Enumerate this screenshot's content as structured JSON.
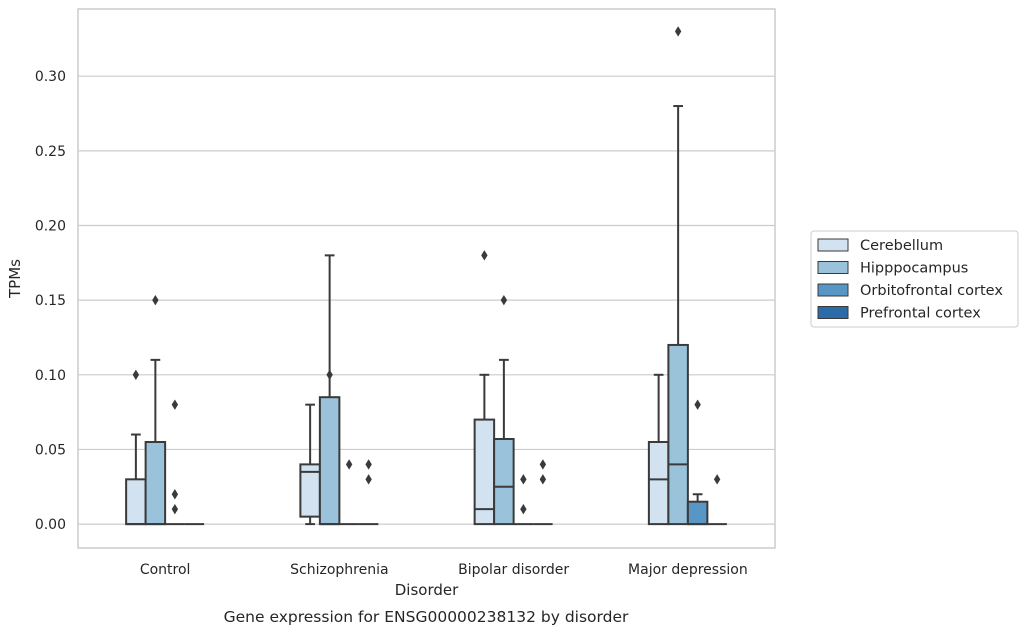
{
  "chart_data": {
    "type": "boxplot",
    "caption": "Gene expression for ENSG00000238132 by disorder",
    "xlabel": "Disorder",
    "ylabel": "TPMs",
    "ylim": [
      -0.016,
      0.345
    ],
    "yticks": [
      0.0,
      0.05,
      0.1,
      0.15,
      0.2,
      0.25,
      0.3
    ],
    "ytick_labels": [
      "0.00",
      "0.05",
      "0.10",
      "0.15",
      "0.20",
      "0.25",
      "0.30"
    ],
    "grid": true,
    "legend_position": "right",
    "categories": [
      "Control",
      "Schizophrenia",
      "Bipolar disorder",
      "Major depression"
    ],
    "series": [
      {
        "name": "Cerebellum",
        "color": "#d2e2f0",
        "boxes": [
          {
            "q1": 0.0,
            "median": 0.0,
            "q3": 0.03,
            "whisker_low": 0.0,
            "whisker_high": 0.06,
            "outliers": [
              0.1
            ]
          },
          {
            "q1": 0.005,
            "median": 0.035,
            "q3": 0.04,
            "whisker_low": 0.0,
            "whisker_high": 0.08,
            "outliers": []
          },
          {
            "q1": 0.0,
            "median": 0.01,
            "q3": 0.07,
            "whisker_low": 0.0,
            "whisker_high": 0.1,
            "outliers": [
              0.18
            ]
          },
          {
            "q1": 0.0,
            "median": 0.03,
            "q3": 0.055,
            "whisker_low": 0.0,
            "whisker_high": 0.1,
            "outliers": []
          }
        ]
      },
      {
        "name": "Hipppocampus",
        "color": "#9ac3db",
        "boxes": [
          {
            "q1": 0.0,
            "median": 0.0,
            "q3": 0.055,
            "whisker_low": 0.0,
            "whisker_high": 0.11,
            "outliers": [
              0.15
            ]
          },
          {
            "q1": 0.0,
            "median": 0.0,
            "q3": 0.085,
            "whisker_low": 0.0,
            "whisker_high": 0.18,
            "outliers": [
              0.1
            ]
          },
          {
            "q1": 0.0,
            "median": 0.025,
            "q3": 0.057,
            "whisker_low": 0.0,
            "whisker_high": 0.11,
            "outliers": [
              0.15
            ]
          },
          {
            "q1": 0.0,
            "median": 0.04,
            "q3": 0.12,
            "whisker_low": 0.0,
            "whisker_high": 0.28,
            "outliers": [
              0.33
            ]
          }
        ]
      },
      {
        "name": "Orbitofrontal cortex",
        "color": "#5897c5",
        "boxes": [
          {
            "q1": 0.0,
            "median": 0.0,
            "q3": 0.0,
            "whisker_low": 0.0,
            "whisker_high": 0.0,
            "outliers": [
              0.01,
              0.02,
              0.08
            ]
          },
          {
            "q1": 0.0,
            "median": 0.0,
            "q3": 0.0,
            "whisker_low": 0.0,
            "whisker_high": 0.0,
            "outliers": [
              0.04
            ]
          },
          {
            "q1": 0.0,
            "median": 0.0,
            "q3": 0.0,
            "whisker_low": 0.0,
            "whisker_high": 0.0,
            "outliers": [
              0.01,
              0.03
            ]
          },
          {
            "q1": 0.0,
            "median": 0.0,
            "q3": 0.015,
            "whisker_low": 0.0,
            "whisker_high": 0.02,
            "outliers": [
              0.08
            ]
          }
        ]
      },
      {
        "name": "Prefrontal cortex",
        "color": "#2b6ca8",
        "boxes": [
          {
            "q1": 0.0,
            "median": 0.0,
            "q3": 0.0,
            "whisker_low": 0.0,
            "whisker_high": 0.0,
            "outliers": []
          },
          {
            "q1": 0.0,
            "median": 0.0,
            "q3": 0.0,
            "whisker_low": 0.0,
            "whisker_high": 0.0,
            "outliers": [
              0.03,
              0.04
            ]
          },
          {
            "q1": 0.0,
            "median": 0.0,
            "q3": 0.0,
            "whisker_low": 0.0,
            "whisker_high": 0.0,
            "outliers": [
              0.03,
              0.04
            ]
          },
          {
            "q1": 0.0,
            "median": 0.0,
            "q3": 0.0,
            "whisker_low": 0.0,
            "whisker_high": 0.0,
            "outliers": [
              0.03
            ]
          }
        ]
      }
    ]
  }
}
